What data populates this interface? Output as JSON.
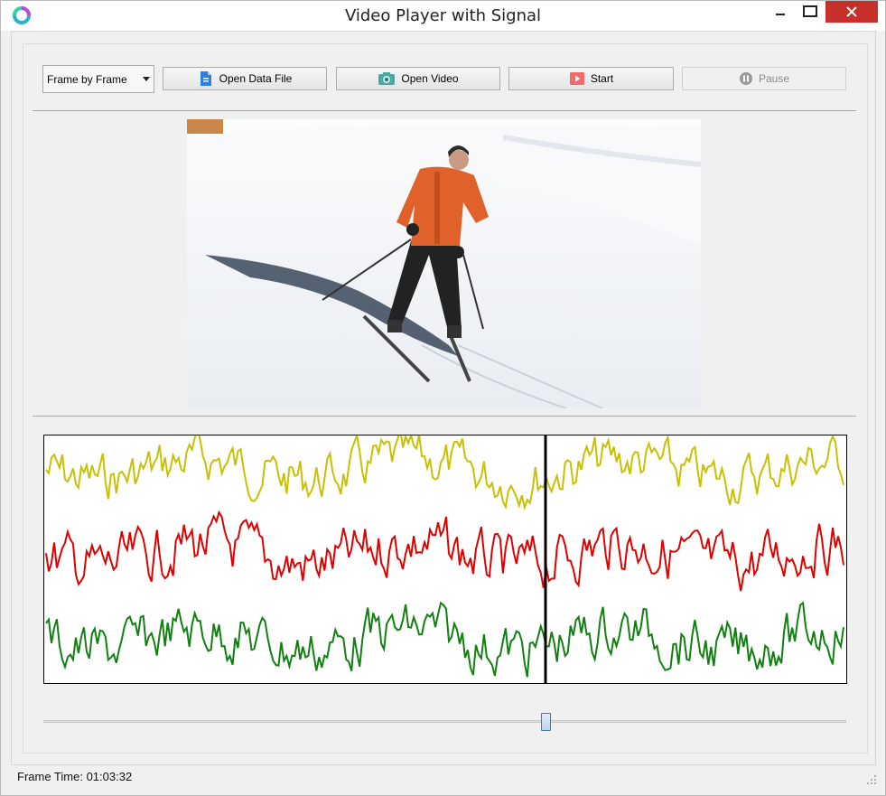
{
  "window": {
    "title": "Video Player with Signal"
  },
  "toolbar": {
    "mode_select": {
      "value": "Frame by Frame"
    },
    "open_data_label": "Open Data File",
    "open_video_label": "Open Video",
    "start_label": "Start",
    "pause_label": "Pause"
  },
  "colors": {
    "series_1": "#c8c000",
    "series_2": "#e00000",
    "series_3": "#108010",
    "cursor": "#000000",
    "close_button": "#c7302a"
  },
  "signal_plot": {
    "series_count": 3,
    "cursor_position": 0.625
  },
  "playback": {
    "progress": 0.625
  },
  "status": {
    "frame_time": "Frame Time: 01:03:32"
  }
}
